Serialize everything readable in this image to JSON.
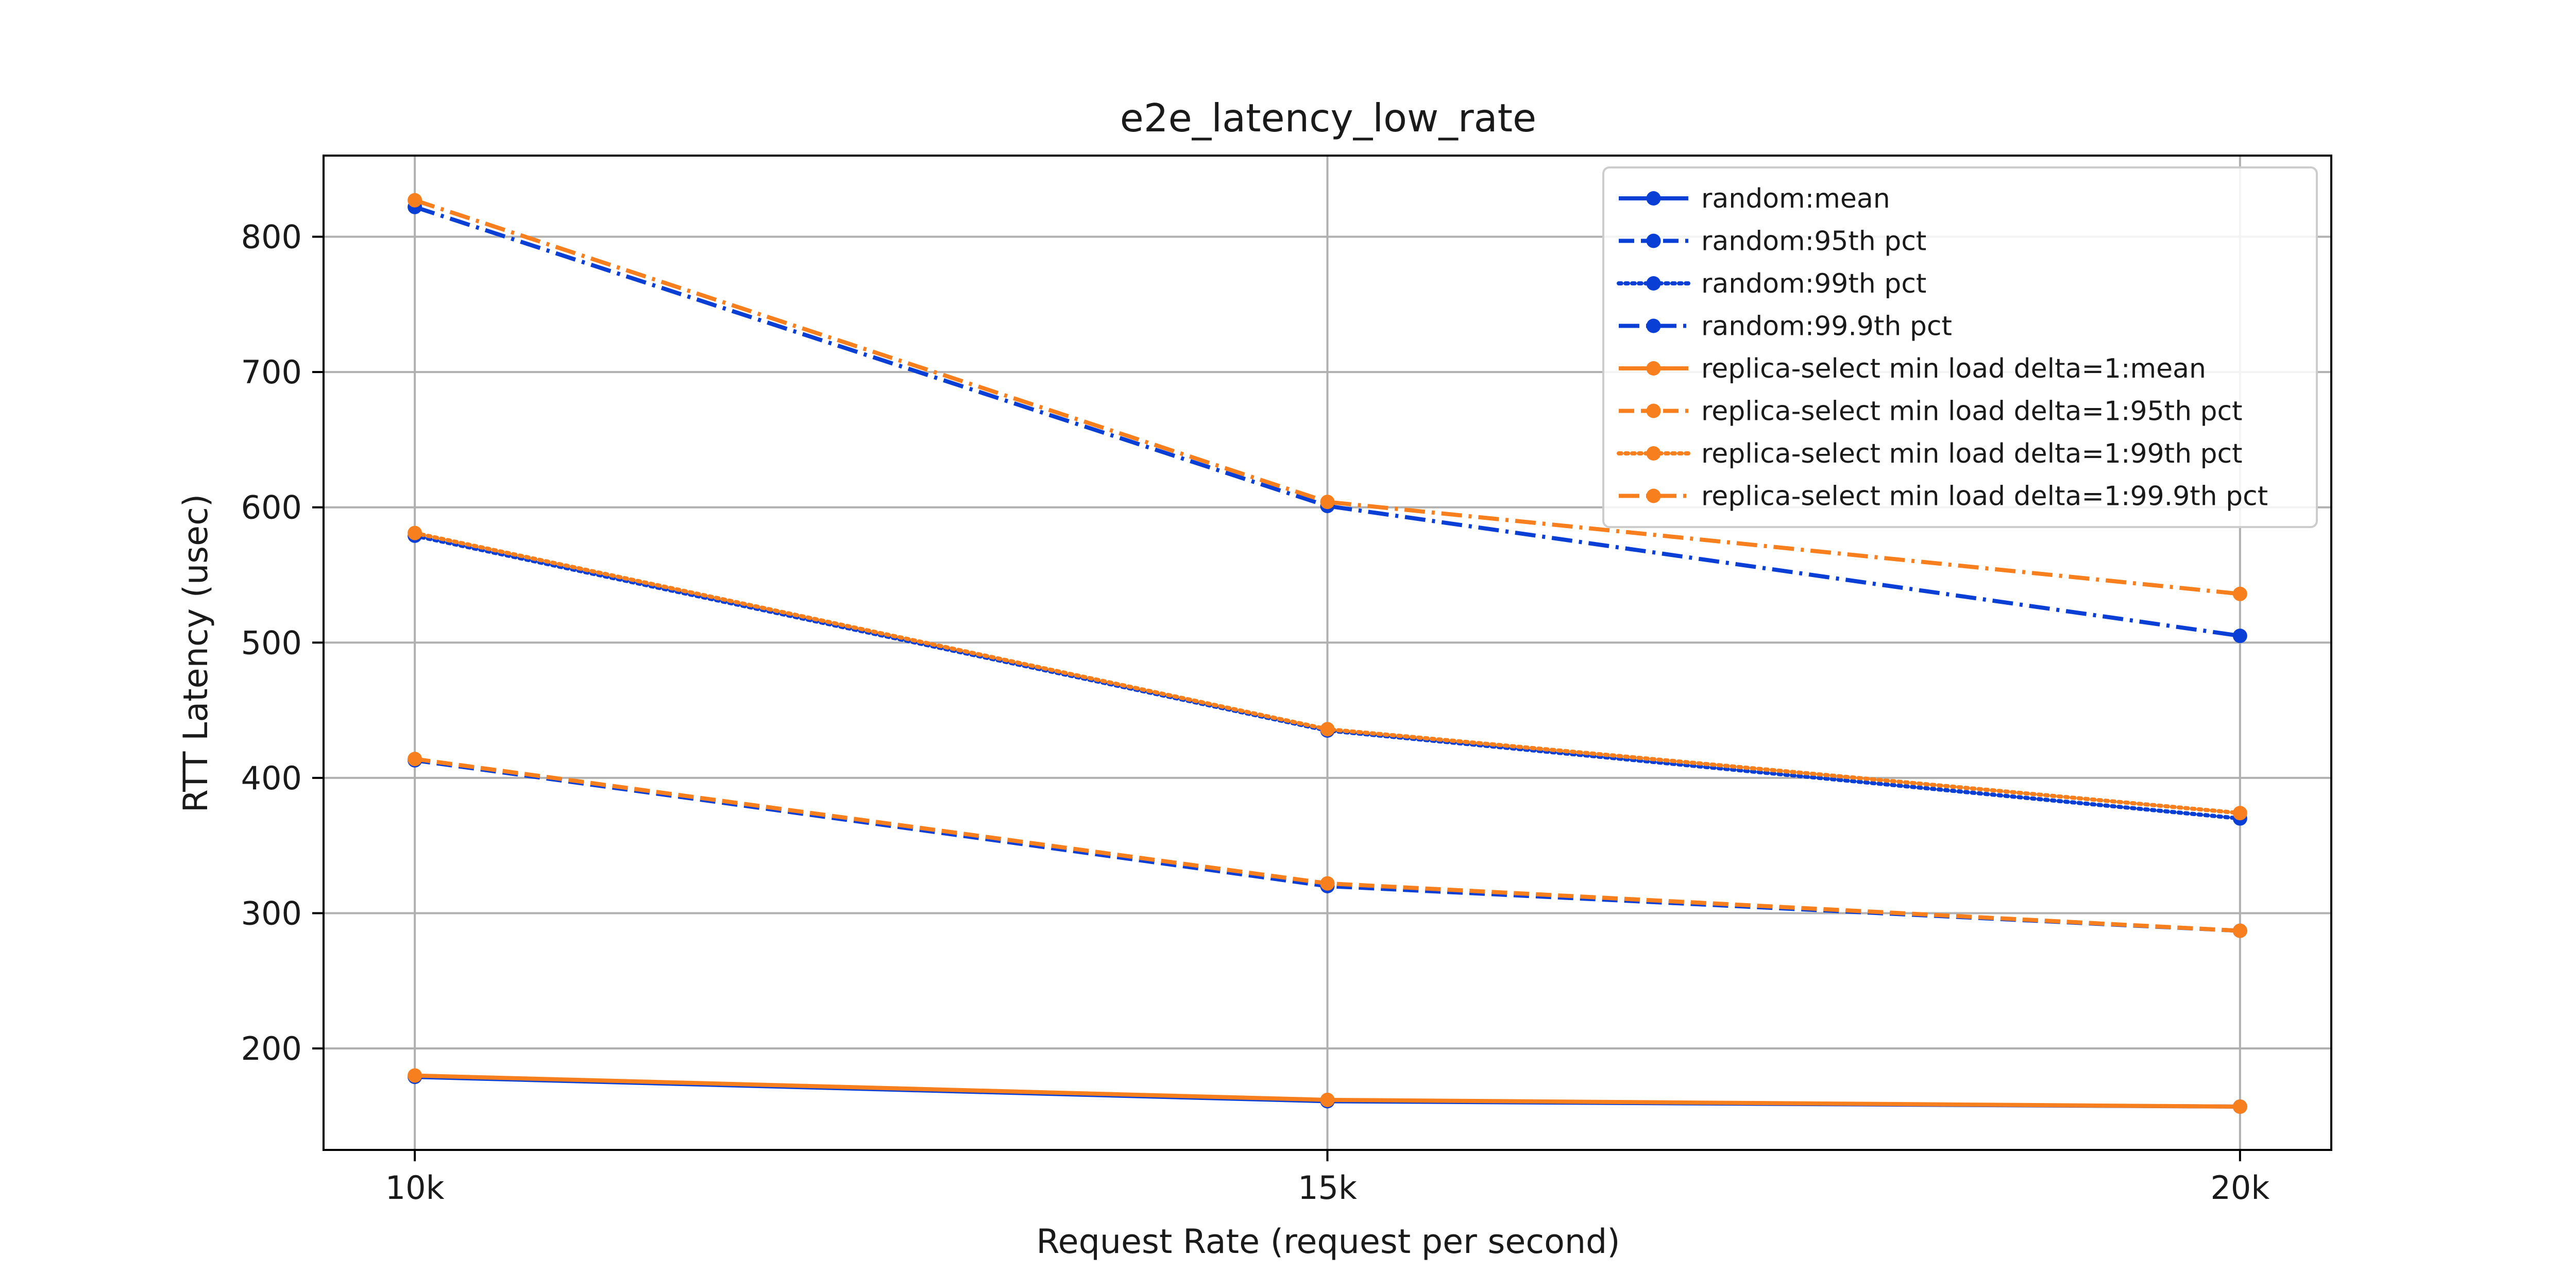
{
  "chart_data": {
    "type": "line",
    "title": "e2e_latency_low_rate",
    "xlabel": "Request Rate (request per second)",
    "ylabel": "RTT Latency (usec)",
    "categories": [
      "10k",
      "15k",
      "20k"
    ],
    "x": [
      10000,
      15000,
      20000
    ],
    "xlim": [
      9500,
      20500
    ],
    "ylim": [
      125,
      860
    ],
    "yticks": [
      200,
      300,
      400,
      500,
      600,
      700,
      800
    ],
    "grid": true,
    "legend_position": "top-right",
    "series": [
      {
        "name": "random:mean",
        "values": [
          179,
          161,
          157
        ],
        "color": "#0a3fd6",
        "style": "solid"
      },
      {
        "name": "random:95th pct",
        "values": [
          413,
          320,
          287
        ],
        "color": "#0a3fd6",
        "style": "dashed"
      },
      {
        "name": "random:99th pct",
        "values": [
          579,
          435,
          370
        ],
        "color": "#0a3fd6",
        "style": "dotted"
      },
      {
        "name": "random:99.9th pct",
        "values": [
          822,
          601,
          505
        ],
        "color": "#0a3fd6",
        "style": "dashdot"
      },
      {
        "name": "replica-select min load delta=1:mean",
        "values": [
          180,
          162,
          157
        ],
        "color": "#f77f1d",
        "style": "solid"
      },
      {
        "name": "replica-select min load delta=1:95th pct",
        "values": [
          414,
          322,
          287
        ],
        "color": "#f77f1d",
        "style": "dashed"
      },
      {
        "name": "replica-select min load delta=1:99th pct",
        "values": [
          581,
          436,
          374
        ],
        "color": "#f77f1d",
        "style": "dotted"
      },
      {
        "name": "replica-select min load delta=1:99.9th pct",
        "values": [
          827,
          604,
          536
        ],
        "color": "#f77f1d",
        "style": "dashdot"
      }
    ]
  }
}
